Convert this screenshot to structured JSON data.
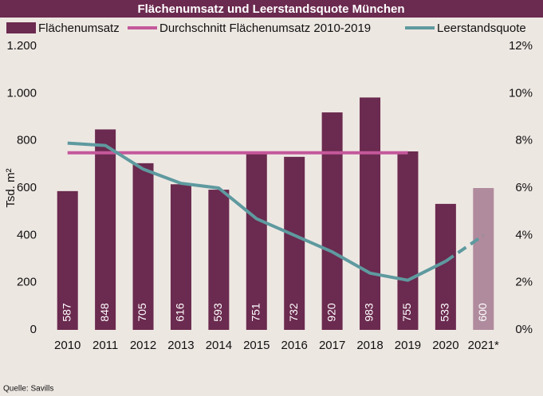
{
  "chart_data": {
    "type": "bar_line",
    "title": "Flächenumsatz und Leerstandsquote München",
    "ylabel": "Tsd. m²",
    "source": "Quelle: Savills",
    "categories": [
      "2010",
      "2011",
      "2012",
      "2013",
      "2014",
      "2015",
      "2016",
      "2017",
      "2018",
      "2019",
      "2020",
      "2021*"
    ],
    "series": [
      {
        "name": "Flächenumsatz",
        "kind": "bar",
        "color": "#6b2a4f",
        "colors": [
          "#6b2a4f",
          "#6b2a4f",
          "#6b2a4f",
          "#6b2a4f",
          "#6b2a4f",
          "#6b2a4f",
          "#6b2a4f",
          "#6b2a4f",
          "#6b2a4f",
          "#6b2a4f",
          "#6b2a4f",
          "#b08b9d"
        ],
        "values": [
          587,
          848,
          705,
          616,
          593,
          751,
          732,
          920,
          983,
          755,
          533,
          600
        ]
      },
      {
        "name": "Durchschnitt Flächenumsatz 2010-2019",
        "kind": "line",
        "color": "#c4589b",
        "values": [
          749,
          749,
          749,
          749,
          749,
          749,
          749,
          749,
          749,
          749,
          null,
          null
        ]
      },
      {
        "name": "Leerstandsquote",
        "kind": "line",
        "axis": "y2",
        "color": "#5e9a9f",
        "dash_from_index": 10,
        "values": [
          7.9,
          7.8,
          6.8,
          6.2,
          6.0,
          4.7,
          4.0,
          3.3,
          2.4,
          2.1,
          2.9,
          4.0
        ]
      }
    ],
    "ylim": [
      0,
      1200
    ],
    "yticks": [
      0,
      200,
      400,
      600,
      800,
      {
        "value": 1000,
        "label": "1.000"
      },
      {
        "value": 1200,
        "label": "1.200"
      }
    ],
    "y2lim": [
      0,
      12
    ],
    "y2ticks": [
      {
        "value": 0,
        "label": "0%"
      },
      {
        "value": 2,
        "label": "2%"
      },
      {
        "value": 4,
        "label": "4%"
      },
      {
        "value": 6,
        "label": "6%"
      },
      {
        "value": 8,
        "label": "8%"
      },
      {
        "value": 10,
        "label": "10%"
      },
      {
        "value": 12,
        "label": "12%"
      }
    ]
  }
}
